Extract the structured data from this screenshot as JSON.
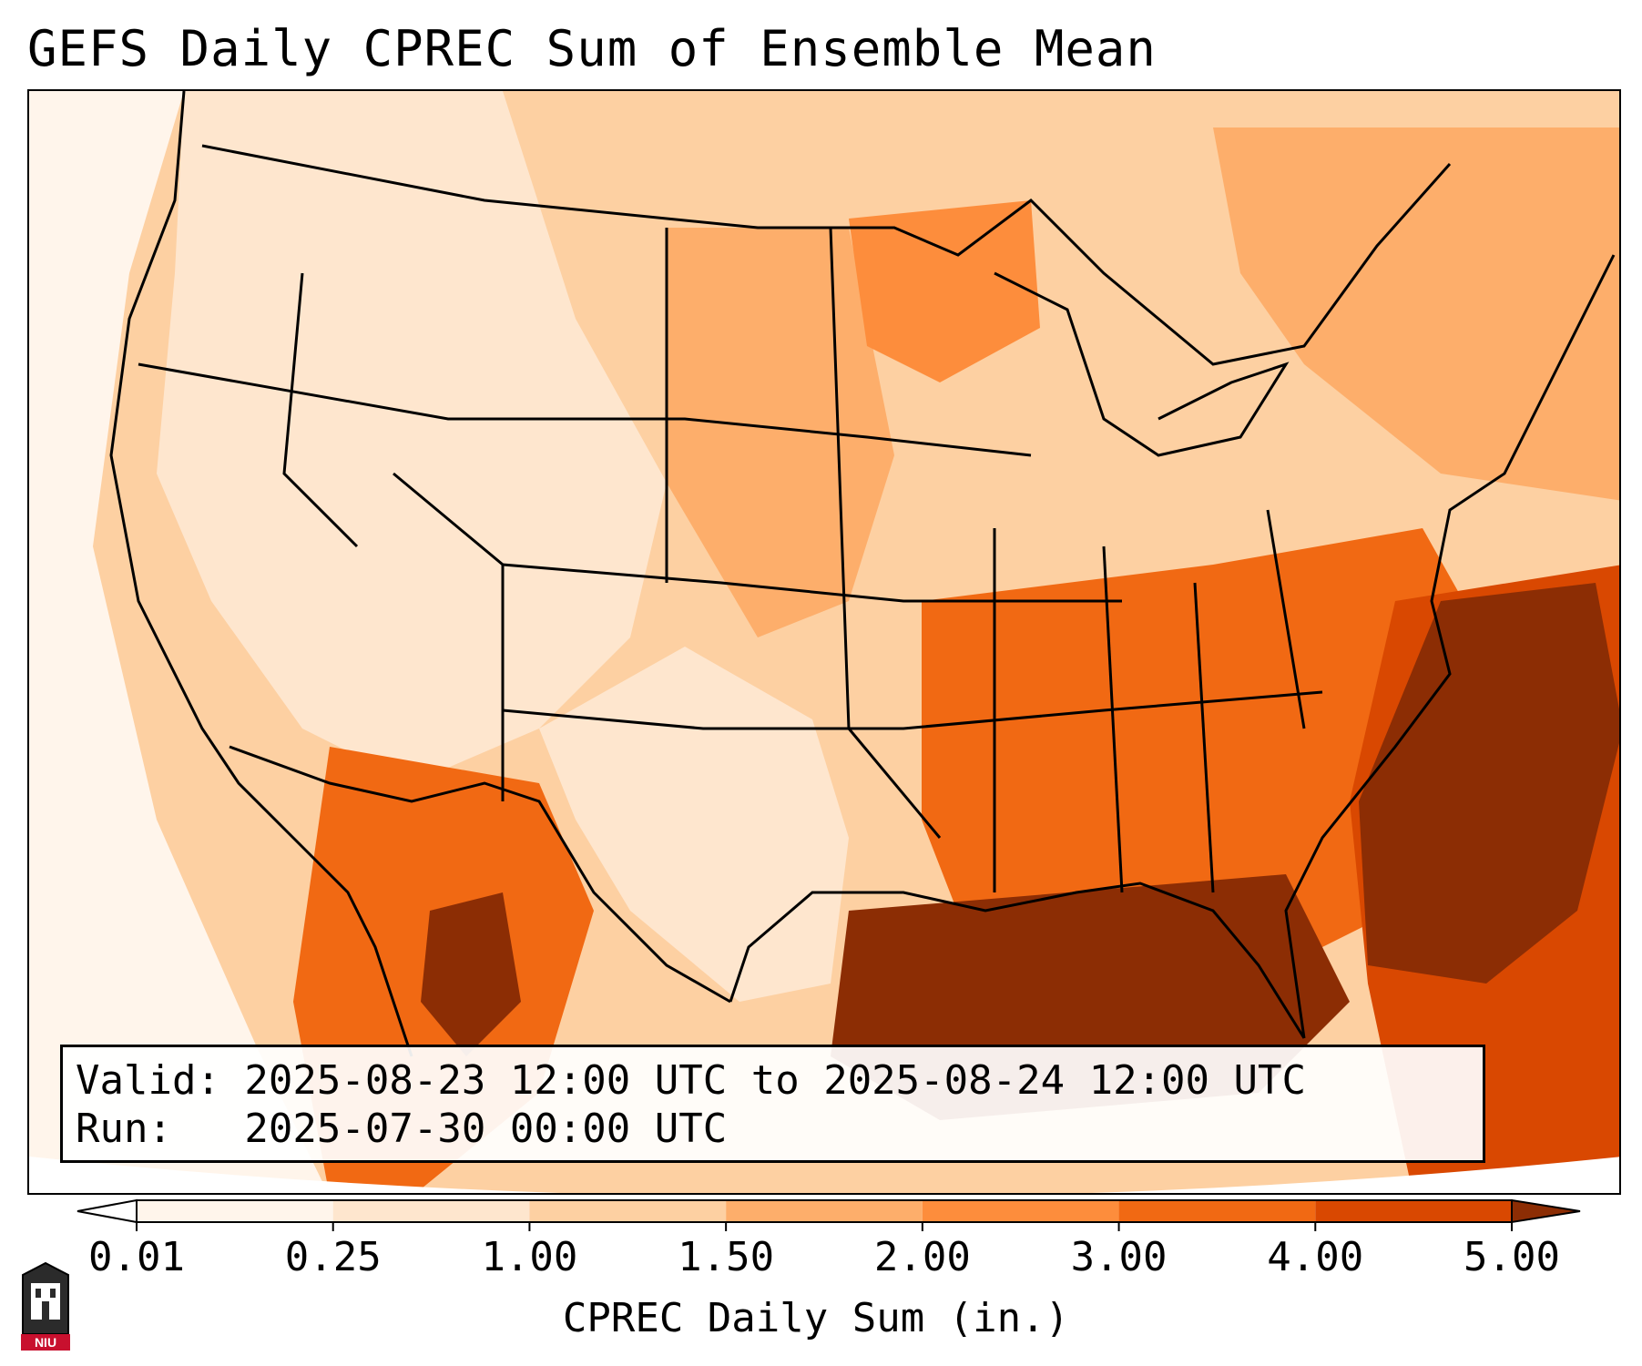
{
  "title": "GEFS Daily CPREC Sum of Ensemble Mean",
  "info": {
    "valid_line": "Valid: 2025-08-23 12:00 UTC to 2025-08-24 12:00 UTC",
    "run_line": "Run:   2025-07-30 00:00 UTC"
  },
  "colorbar": {
    "label": "CPREC Daily Sum (in.)",
    "ticks": [
      "0.01",
      "0.25",
      "1.00",
      "1.50",
      "2.00",
      "3.00",
      "4.00",
      "5.00"
    ],
    "colors": [
      "#fff5eb",
      "#fee6ce",
      "#fdd0a2",
      "#fdae6b",
      "#fd8d3c",
      "#f16913",
      "#d94801",
      "#8c2d04"
    ],
    "under_color": "#ffffff",
    "over_color": "#8c2d04"
  },
  "logo": {
    "text": "NIU",
    "icon": "niu-logo-icon"
  }
}
